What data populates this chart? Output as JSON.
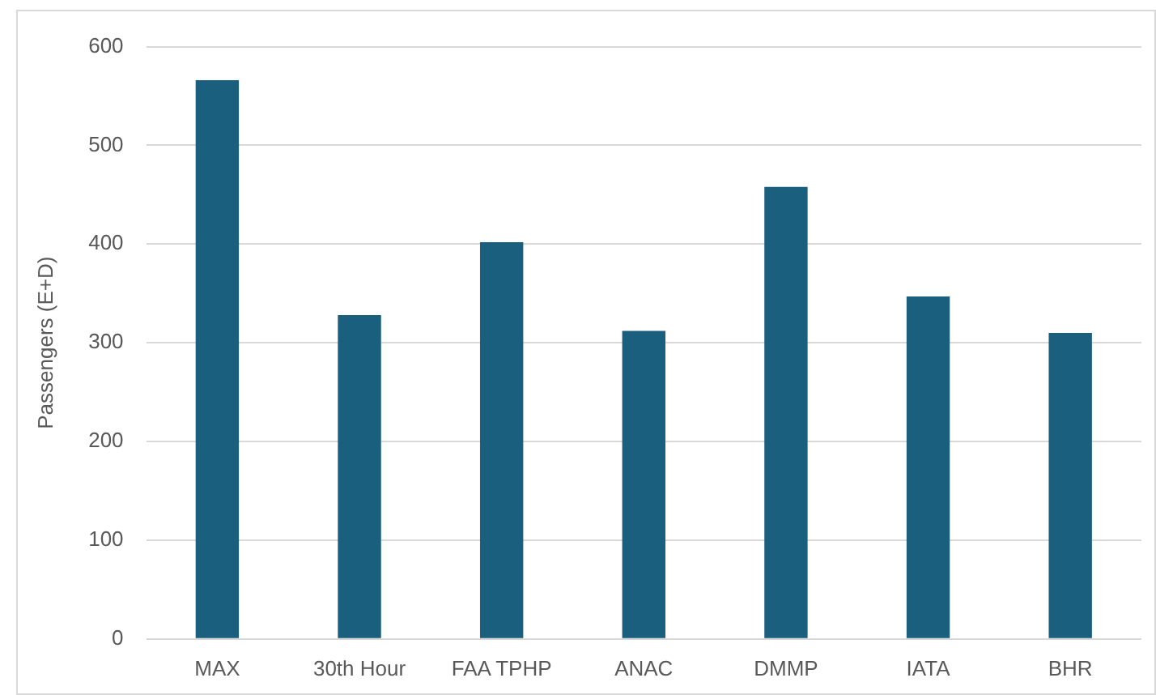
{
  "chart_data": {
    "type": "bar",
    "ylabel": "Passengers (E+D)",
    "categories": [
      "MAX",
      "30th Hour",
      "FAA TPHP",
      "ANAC",
      "DMMP",
      "IATA",
      "BHR"
    ],
    "values": [
      566,
      328,
      402,
      312,
      458,
      347,
      310
    ],
    "color": "#1a5f7e",
    "ylim": [
      0,
      600
    ],
    "yticks": [
      0,
      100,
      200,
      300,
      400,
      500,
      600
    ],
    "grid": "y",
    "legend": false
  }
}
